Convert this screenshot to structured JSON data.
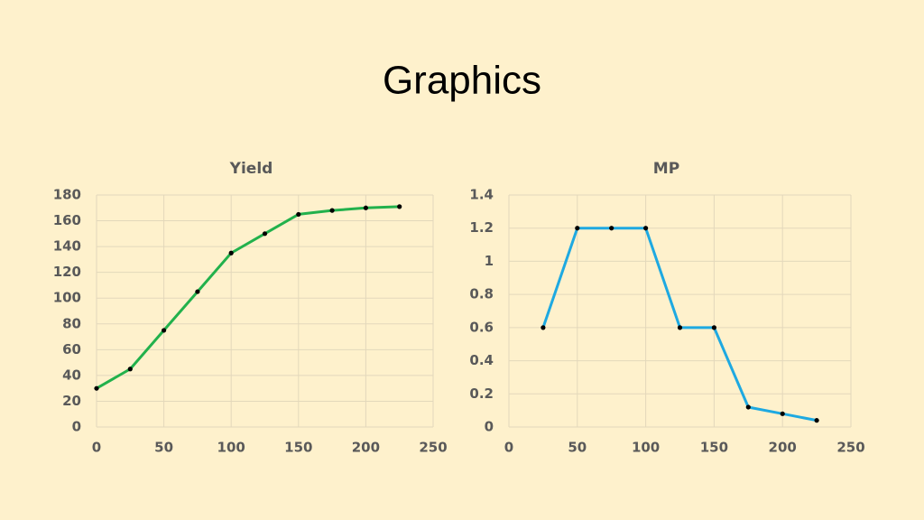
{
  "title": "Graphics",
  "chart_data": [
    {
      "type": "line",
      "title": "Yield",
      "x": [
        0,
        25,
        50,
        75,
        100,
        125,
        150,
        175,
        200,
        225
      ],
      "series": [
        {
          "name": "Yield",
          "color": "#22b14c",
          "values": [
            30,
            45,
            75,
            105,
            135,
            150,
            165,
            168,
            170,
            171
          ]
        }
      ],
      "xlim": [
        0,
        250
      ],
      "xticks": [
        0,
        50,
        100,
        150,
        200,
        250
      ],
      "ylim": [
        0,
        180
      ],
      "yticks": [
        0,
        20,
        40,
        60,
        80,
        100,
        120,
        140,
        160,
        180
      ],
      "grid": true
    },
    {
      "type": "line",
      "title": "MP",
      "x": [
        25,
        50,
        75,
        100,
        125,
        150,
        175,
        200,
        225
      ],
      "series": [
        {
          "name": "MP",
          "color": "#1ea9e1",
          "values": [
            0.6,
            1.2,
            1.2,
            1.2,
            0.6,
            0.6,
            0.12,
            0.08,
            0.04
          ]
        }
      ],
      "xlim": [
        0,
        250
      ],
      "xticks": [
        0,
        50,
        100,
        150,
        200,
        250
      ],
      "ylim": [
        0,
        1.4
      ],
      "yticks": [
        0,
        0.2,
        0.4,
        0.6,
        0.8,
        1,
        1.2,
        1.4
      ],
      "grid": true
    }
  ]
}
